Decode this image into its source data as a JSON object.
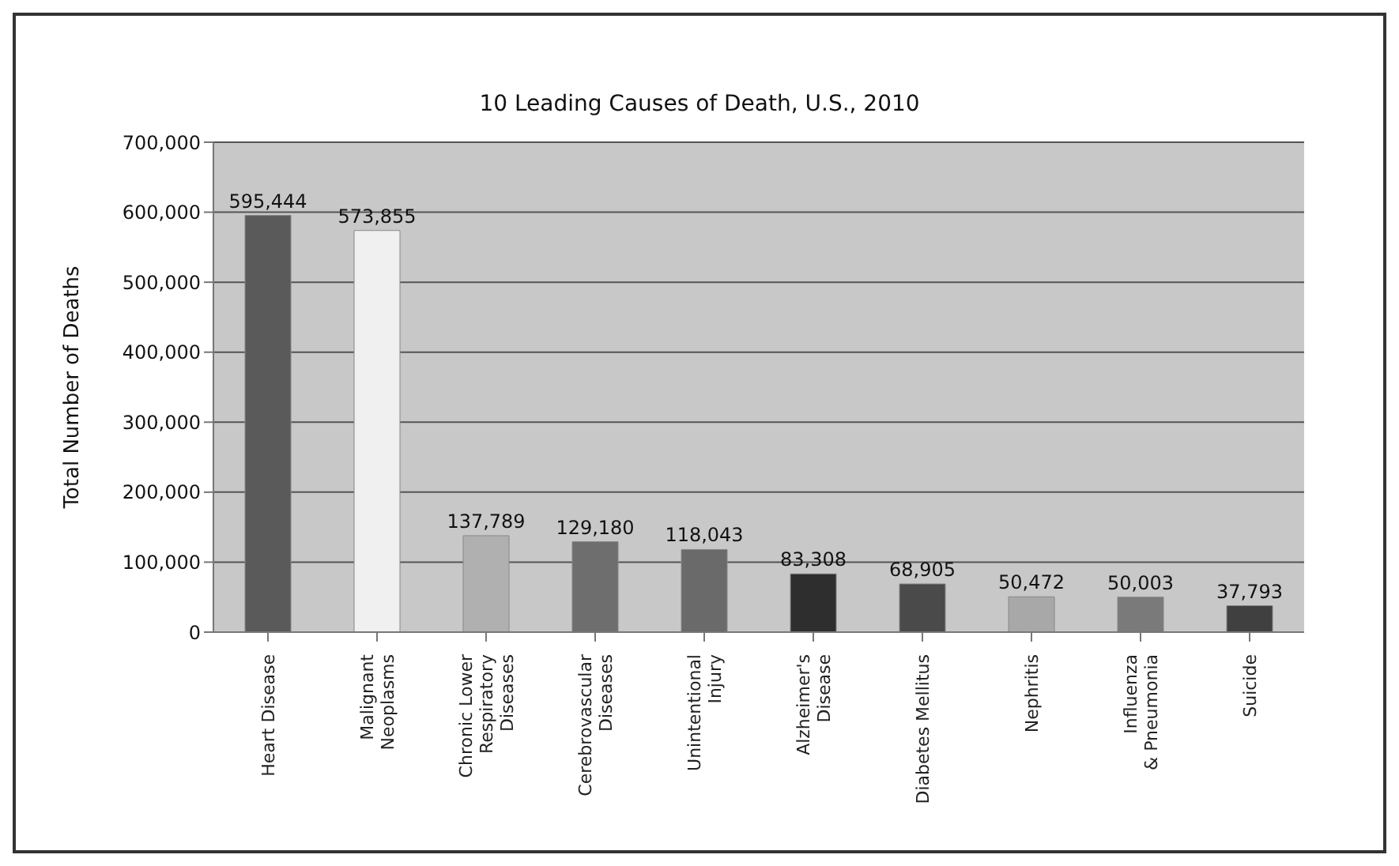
{
  "chart_data": {
    "type": "bar",
    "title": "10 Leading Causes of Death, U.S., 2010",
    "ylabel": "Total Number of Deaths",
    "categories": [
      "Heart Disease",
      "Malignant\nNeoplasms",
      "Chronic Lower\nRespiratory\nDiseases",
      "Cerebrovascular\nDiseases",
      "Unintentional\nInjury",
      "Alzheimer's\nDisease",
      "Diabetes Mellitus",
      "Nephritis",
      "Influenza\n& Pneumonia",
      "Suicide"
    ],
    "values": [
      595444,
      573855,
      137789,
      129180,
      118043,
      83308,
      68905,
      50472,
      50003,
      37793
    ],
    "colors": [
      "#5a5a5a",
      "#f0f0f0",
      "#b0b0b0",
      "#6e6e6e",
      "#6a6a6a",
      "#2e2e2e",
      "#4a4a4a",
      "#a8a8a8",
      "#7a7a7a",
      "#404040"
    ],
    "value_labels": [
      "595,444",
      "573,855",
      "137,789",
      "129,180",
      "118,043",
      "83,308",
      "68,905",
      "50,472",
      "50,003",
      "37,793"
    ],
    "ylim": [
      0,
      700000
    ],
    "yticks": [
      0,
      {
        "value": 100000,
        "label": "100,000"
      },
      {
        "value": 200000,
        "label": "200,000"
      },
      {
        "value": 300000,
        "label": "300,000"
      },
      {
        "value": 400000,
        "label": "400,000"
      },
      {
        "value": 500000,
        "label": "500,000"
      },
      {
        "value": 600000,
        "label": "600,000"
      },
      {
        "value": 700000,
        "label": "700,000"
      }
    ],
    "grid": "y",
    "legend": false
  }
}
